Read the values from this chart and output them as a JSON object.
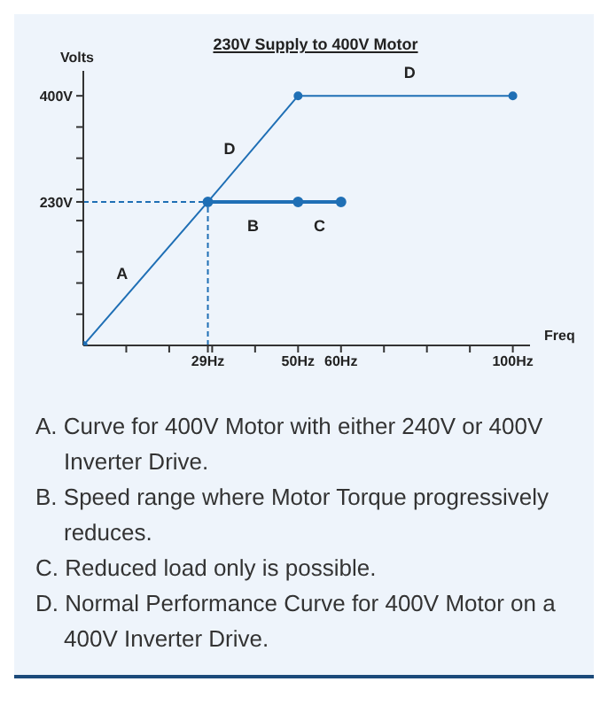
{
  "chart_data": {
    "type": "line",
    "title": "230V Supply to 400V Motor",
    "xlabel": "Freq",
    "ylabel": "Volts",
    "xlim": [
      0,
      104
    ],
    "ylim": [
      0,
      440
    ],
    "xticks": [
      {
        "value": 10,
        "label": null
      },
      {
        "value": 20,
        "label": null
      },
      {
        "value": 29,
        "label": "29Hz"
      },
      {
        "value": 30,
        "label": null
      },
      {
        "value": 40,
        "label": null
      },
      {
        "value": 50,
        "label": "50Hz"
      },
      {
        "value": 60,
        "label": "60Hz"
      },
      {
        "value": 70,
        "label": null
      },
      {
        "value": 80,
        "label": null
      },
      {
        "value": 90,
        "label": null
      },
      {
        "value": 100,
        "label": "100Hz"
      }
    ],
    "yticks": [
      {
        "value": 50,
        "label": null
      },
      {
        "value": 100,
        "label": null
      },
      {
        "value": 150,
        "label": null
      },
      {
        "value": 200,
        "label": null
      },
      {
        "value": 230,
        "label": "230V"
      },
      {
        "value": 250,
        "label": null
      },
      {
        "value": 300,
        "label": null
      },
      {
        "value": 350,
        "label": null
      },
      {
        "value": 400,
        "label": "400V"
      }
    ],
    "series": [
      {
        "color": "#1f6fb5",
        "x": [
          0,
          29,
          50,
          100
        ],
        "values": [
          0,
          230,
          400,
          400
        ]
      },
      {
        "color": "#1f6fb5",
        "x": [
          29,
          50,
          60
        ],
        "values": [
          230,
          230,
          230
        ]
      }
    ],
    "marker": "circle",
    "ref_lines": [
      {
        "axis": "y",
        "value": 230,
        "color": "#1f6fb5",
        "line_style": "dashed"
      },
      {
        "axis": "x",
        "value": 29,
        "color": "#1f6fb5",
        "line_style": "dashed"
      }
    ],
    "annotations": [
      {
        "text": "A",
        "x": 14.5,
        "y": 115
      },
      {
        "text": "D",
        "x": 39.5,
        "y": 315
      },
      {
        "text": "B",
        "x": 39.5,
        "y": 230
      },
      {
        "text": "C",
        "x": 55,
        "y": 230
      },
      {
        "text": "D",
        "x": 76,
        "y": 400
      },
      "A. Curve for 400V Motor with either 240V or 400V Inverter Drive.",
      "B. Speed range where Motor Torque progressively reduces.",
      "C. Reduced load only is possible.",
      "D. Normal Performance Curve for 400V Motor on a 400V Inverter Drive."
    ]
  }
}
